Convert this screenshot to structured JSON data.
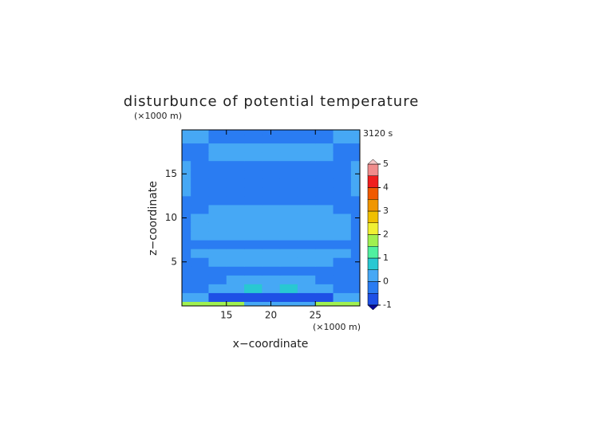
{
  "chart_data": {
    "type": "contour",
    "title": "disturbunce of potential temperature",
    "x_label": "x−coordinate",
    "y_label": "z−coordinate",
    "x_unit": "(×1000 m)",
    "y_unit": "(×1000 m)",
    "time_label": "3120 s",
    "xlim": [
      10,
      30
    ],
    "ylim": [
      0,
      20
    ],
    "xticks": [
      15,
      20,
      25
    ],
    "yticks": [
      5,
      10,
      15
    ],
    "x": [
      10,
      12,
      14,
      16,
      18,
      20,
      22,
      24,
      26,
      28,
      30
    ],
    "y": [
      0,
      1,
      2,
      3,
      4,
      5,
      6,
      7,
      8,
      9,
      10,
      11,
      12,
      13,
      14,
      15,
      16,
      17,
      18,
      19,
      20
    ],
    "z": [
      [
        1.8,
        1.8,
        1.8,
        1.8,
        0.2,
        0.2,
        0.2,
        0.2,
        1.8,
        1.8,
        1.8
      ],
      [
        0.2,
        0.2,
        -0.8,
        -0.8,
        -0.8,
        -0.8,
        -0.8,
        -0.8,
        -0.8,
        0.2,
        0.2
      ],
      [
        -0.2,
        -0.2,
        0.2,
        0.2,
        0.7,
        0.2,
        0.7,
        0.2,
        0.2,
        -0.2,
        -0.2
      ],
      [
        -0.2,
        -0.2,
        -0.2,
        0.2,
        0.2,
        0.2,
        0.2,
        0.2,
        -0.2,
        -0.2,
        -0.2
      ],
      [
        -0.2,
        -0.2,
        -0.2,
        -0.2,
        -0.2,
        -0.2,
        -0.2,
        -0.2,
        -0.2,
        -0.2,
        -0.2
      ],
      [
        -0.2,
        -0.2,
        0.2,
        0.2,
        0.2,
        0.2,
        0.2,
        0.2,
        0.2,
        -0.2,
        -0.2
      ],
      [
        -0.2,
        0.2,
        0.2,
        0.2,
        0.2,
        0.2,
        0.2,
        0.2,
        0.2,
        0.2,
        -0.2
      ],
      [
        -0.2,
        -0.2,
        -0.2,
        -0.2,
        -0.2,
        -0.2,
        -0.2,
        -0.2,
        -0.2,
        -0.2,
        -0.2
      ],
      [
        -0.2,
        0.2,
        0.2,
        0.2,
        0.2,
        0.2,
        0.2,
        0.2,
        0.2,
        0.2,
        -0.2
      ],
      [
        -0.2,
        0.2,
        0.2,
        0.2,
        0.2,
        0.2,
        0.2,
        0.2,
        0.2,
        0.2,
        -0.2
      ],
      [
        -0.2,
        0.2,
        0.2,
        0.2,
        0.2,
        0.2,
        0.2,
        0.2,
        0.2,
        0.2,
        -0.2
      ],
      [
        -0.2,
        -0.2,
        0.2,
        0.2,
        0.2,
        0.2,
        0.2,
        0.2,
        0.2,
        -0.2,
        -0.2
      ],
      [
        -0.2,
        -0.2,
        -0.2,
        -0.2,
        -0.2,
        -0.2,
        -0.2,
        -0.2,
        -0.2,
        -0.2,
        -0.2
      ],
      [
        0.2,
        -0.2,
        -0.2,
        -0.2,
        -0.2,
        -0.2,
        -0.2,
        -0.2,
        -0.2,
        -0.2,
        0.2
      ],
      [
        0.2,
        -0.2,
        -0.2,
        -0.2,
        -0.2,
        -0.2,
        -0.2,
        -0.2,
        -0.2,
        -0.2,
        0.2
      ],
      [
        0.2,
        -0.2,
        -0.2,
        -0.2,
        -0.2,
        -0.2,
        -0.2,
        -0.2,
        -0.2,
        -0.2,
        0.2
      ],
      [
        0.2,
        -0.2,
        -0.2,
        -0.2,
        -0.2,
        -0.2,
        -0.2,
        -0.2,
        -0.2,
        -0.2,
        0.2
      ],
      [
        -0.2,
        -0.2,
        0.2,
        0.2,
        0.2,
        0.2,
        0.2,
        0.2,
        0.2,
        -0.2,
        -0.2
      ],
      [
        -0.2,
        -0.2,
        0.2,
        0.2,
        0.2,
        0.2,
        0.2,
        0.2,
        0.2,
        -0.2,
        -0.2
      ],
      [
        0.2,
        0.2,
        -0.2,
        -0.2,
        -0.2,
        -0.2,
        -0.2,
        -0.2,
        -0.2,
        0.2,
        0.2
      ],
      [
        0.2,
        0.2,
        -0.2,
        -0.2,
        -0.2,
        -0.2,
        -0.2,
        -0.2,
        -0.2,
        0.2,
        0.2
      ]
    ],
    "levels": [
      -1,
      -0.5,
      0,
      0.5,
      1,
      1.5,
      2,
      2.5,
      3,
      3.5,
      4,
      4.5,
      5
    ],
    "colors": [
      "#1e50e6",
      "#2a7cf2",
      "#46a8f5",
      "#28c8d2",
      "#50f0a0",
      "#a0f050",
      "#f0f032",
      "#f0c000",
      "#f09600",
      "#f05a00",
      "#f01e1e",
      "#f08c8c"
    ],
    "under_color": "#0a0a96",
    "over_color": "#f5c8c8",
    "cbar_ticks": [
      -1,
      0,
      1,
      2,
      3,
      4,
      5
    ]
  }
}
